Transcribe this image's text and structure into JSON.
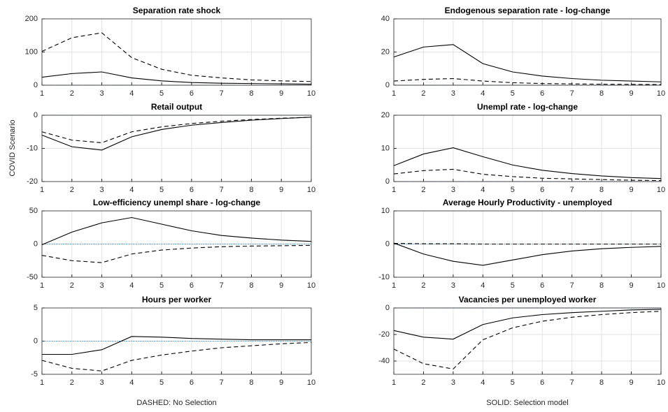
{
  "ylabel": "COVID Scenario",
  "chart_data": [
    {
      "type": "line",
      "title": "Separation rate shock",
      "x": [
        1,
        2,
        3,
        4,
        5,
        6,
        7,
        8,
        9,
        10
      ],
      "xlim": [
        1,
        10
      ],
      "xticks": [
        1,
        2,
        3,
        4,
        5,
        6,
        7,
        8,
        9,
        10
      ],
      "ylim": [
        0,
        200
      ],
      "yticks": [
        0,
        100,
        200
      ],
      "grid": true,
      "zero_line_color": "#1f77b4",
      "series": [
        {
          "color": "#000000",
          "dash": true,
          "values": [
            102,
            143,
            158,
            83,
            48,
            30,
            22,
            16,
            13,
            11
          ]
        },
        {
          "color": "#000000",
          "dash": false,
          "values": [
            24,
            35,
            40,
            22,
            13,
            8,
            6,
            5,
            4,
            3
          ]
        }
      ]
    },
    {
      "type": "line",
      "title": "Endogenous separation rate - log-change",
      "x": [
        1,
        2,
        3,
        4,
        5,
        6,
        7,
        8,
        9,
        10
      ],
      "xlim": [
        1,
        10
      ],
      "xticks": [
        1,
        2,
        3,
        4,
        5,
        6,
        7,
        8,
        9,
        10
      ],
      "ylim": [
        0,
        40
      ],
      "yticks": [
        0,
        20,
        40
      ],
      "grid": true,
      "zero_line_color": "#1f77b4",
      "series": [
        {
          "color": "#000000",
          "dash": true,
          "values": [
            2.5,
            3.5,
            4,
            2.5,
            1.5,
            1,
            0.8,
            0.6,
            0.5,
            0.4
          ]
        },
        {
          "color": "#000000",
          "dash": false,
          "values": [
            17,
            23,
            24.5,
            13,
            8,
            5.5,
            4,
            3,
            2.5,
            2
          ]
        }
      ]
    },
    {
      "type": "line",
      "title": "Retail output",
      "x": [
        1,
        2,
        3,
        4,
        5,
        6,
        7,
        8,
        9,
        10
      ],
      "xlim": [
        1,
        10
      ],
      "xticks": [
        1,
        2,
        3,
        4,
        5,
        6,
        7,
        8,
        9,
        10
      ],
      "ylim": [
        -20,
        0
      ],
      "yticks": [
        -20,
        -10,
        0
      ],
      "grid": true,
      "zero_line_color": "#1f77b4",
      "series": [
        {
          "color": "#000000",
          "dash": true,
          "values": [
            -5,
            -7.5,
            -8.3,
            -5,
            -3.5,
            -2.5,
            -1.8,
            -1.3,
            -0.9,
            -0.6
          ]
        },
        {
          "color": "#000000",
          "dash": false,
          "values": [
            -6,
            -9.5,
            -10.5,
            -6.5,
            -4.3,
            -3,
            -2.2,
            -1.5,
            -1,
            -0.6
          ]
        }
      ]
    },
    {
      "type": "line",
      "title": "Unempl rate - log-change",
      "x": [
        1,
        2,
        3,
        4,
        5,
        6,
        7,
        8,
        9,
        10
      ],
      "xlim": [
        1,
        10
      ],
      "xticks": [
        1,
        2,
        3,
        4,
        5,
        6,
        7,
        8,
        9,
        10
      ],
      "ylim": [
        0,
        20
      ],
      "yticks": [
        0,
        10,
        20
      ],
      "grid": true,
      "zero_line_color": "#1f77b4",
      "series": [
        {
          "color": "#000000",
          "dash": true,
          "values": [
            2.3,
            3.3,
            3.7,
            2.2,
            1.5,
            1,
            0.8,
            0.6,
            0.4,
            0.3
          ]
        },
        {
          "color": "#000000",
          "dash": false,
          "values": [
            4.8,
            8.3,
            10.2,
            7.5,
            5,
            3.4,
            2.4,
            1.7,
            1.2,
            0.9
          ]
        }
      ]
    },
    {
      "type": "line",
      "title": "Low-efficiency unempl share - log-change",
      "x": [
        1,
        2,
        3,
        4,
        5,
        6,
        7,
        8,
        9,
        10
      ],
      "xlim": [
        1,
        10
      ],
      "xticks": [
        1,
        2,
        3,
        4,
        5,
        6,
        7,
        8,
        9,
        10
      ],
      "ylim": [
        -50,
        50
      ],
      "yticks": [
        -50,
        0,
        50
      ],
      "grid": true,
      "zero_line_color": "#1f77b4",
      "series": [
        {
          "color": "#000000",
          "dash": true,
          "values": [
            -17,
            -25,
            -28,
            -15,
            -9,
            -6,
            -4,
            -3,
            -2.5,
            -2
          ]
        },
        {
          "color": "#000000",
          "dash": false,
          "values": [
            -1,
            18,
            32,
            40,
            30,
            20,
            13,
            9,
            6,
            4
          ]
        }
      ]
    },
    {
      "type": "line",
      "title": "Average Hourly Productivity - unemployed",
      "x": [
        1,
        2,
        3,
        4,
        5,
        6,
        7,
        8,
        9,
        10
      ],
      "xlim": [
        1,
        10
      ],
      "xticks": [
        1,
        2,
        3,
        4,
        5,
        6,
        7,
        8,
        9,
        10
      ],
      "ylim": [
        -10,
        10
      ],
      "yticks": [
        -10,
        0,
        10
      ],
      "grid": true,
      "zero_line_color": "#1f77b4",
      "series": [
        {
          "color": "#000000",
          "dash": true,
          "values": [
            0.2,
            0.1,
            0.1,
            0,
            0,
            0,
            0,
            0,
            0,
            0
          ]
        },
        {
          "color": "#000000",
          "dash": false,
          "values": [
            0.3,
            -3,
            -5.2,
            -6.4,
            -4.8,
            -3.2,
            -2.1,
            -1.4,
            -1,
            -0.7
          ]
        }
      ]
    },
    {
      "type": "line",
      "title": "Hours per worker",
      "xlabel": "DASHED: No Selection",
      "x": [
        1,
        2,
        3,
        4,
        5,
        6,
        7,
        8,
        9,
        10
      ],
      "xlim": [
        1,
        10
      ],
      "xticks": [
        1,
        2,
        3,
        4,
        5,
        6,
        7,
        8,
        9,
        10
      ],
      "ylim": [
        -5,
        5
      ],
      "yticks": [
        -5,
        0,
        5
      ],
      "grid": true,
      "zero_line_color": "#1f77b4",
      "series": [
        {
          "color": "#000000",
          "dash": true,
          "values": [
            -2.9,
            -4.1,
            -4.5,
            -2.9,
            -2.1,
            -1.5,
            -1,
            -0.7,
            -0.4,
            -0.2
          ]
        },
        {
          "color": "#000000",
          "dash": false,
          "values": [
            -2,
            -2,
            -1.3,
            0.7,
            0.6,
            0.4,
            0.3,
            0.2,
            0.2,
            0.2
          ]
        }
      ]
    },
    {
      "type": "line",
      "title": "Vacancies per unemployed worker",
      "xlabel": "SOLID: Selection model",
      "x": [
        1,
        2,
        3,
        4,
        5,
        6,
        7,
        8,
        9,
        10
      ],
      "xlim": [
        1,
        10
      ],
      "xticks": [
        1,
        2,
        3,
        4,
        5,
        6,
        7,
        8,
        9,
        10
      ],
      "ylim": [
        -50,
        0
      ],
      "yticks": [
        -40,
        -20,
        0
      ],
      "grid": true,
      "zero_line_color": "#1f77b4",
      "series": [
        {
          "color": "#000000",
          "dash": true,
          "values": [
            -31,
            -42,
            -46,
            -24,
            -15,
            -10,
            -7,
            -5,
            -3.5,
            -2.5
          ]
        },
        {
          "color": "#000000",
          "dash": false,
          "values": [
            -17,
            -22,
            -23.5,
            -12.5,
            -7.5,
            -5,
            -3.5,
            -2.5,
            -1.5,
            -1
          ]
        }
      ]
    }
  ]
}
